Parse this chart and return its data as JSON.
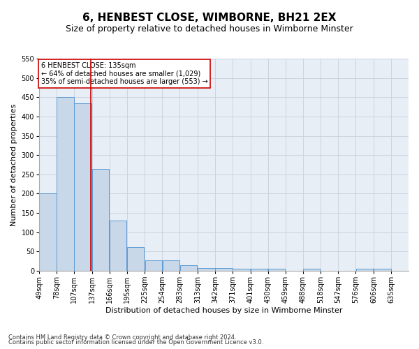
{
  "title": "6, HENBEST CLOSE, WIMBORNE, BH21 2EX",
  "subtitle": "Size of property relative to detached houses in Wimborne Minster",
  "xlabel": "Distribution of detached houses by size in Wimborne Minster",
  "ylabel": "Number of detached properties",
  "footnote1": "Contains HM Land Registry data © Crown copyright and database right 2024.",
  "footnote2": "Contains public sector information licensed under the Open Government Licence v3.0.",
  "annotation_title": "6 HENBEST CLOSE: 135sqm",
  "annotation_line2": "← 64% of detached houses are smaller (1,029)",
  "annotation_line3": "35% of semi-detached houses are larger (553) →",
  "bar_left_edges": [
    49,
    78,
    107,
    137,
    166,
    195,
    225,
    254,
    283,
    313,
    342,
    371,
    401,
    430,
    459,
    488,
    518,
    547,
    576,
    606
  ],
  "bar_widths": [
    29,
    29,
    29,
    29,
    29,
    29,
    29,
    29,
    29,
    29,
    29,
    29,
    29,
    29,
    29,
    29,
    29,
    29,
    29,
    29
  ],
  "bar_heights": [
    200,
    450,
    435,
    265,
    130,
    62,
    28,
    28,
    14,
    8,
    7,
    5,
    5,
    5,
    0,
    5,
    0,
    0,
    5,
    5
  ],
  "tick_labels": [
    "49sqm",
    "78sqm",
    "107sqm",
    "137sqm",
    "166sqm",
    "195sqm",
    "225sqm",
    "254sqm",
    "283sqm",
    "313sqm",
    "342sqm",
    "371sqm",
    "401sqm",
    "430sqm",
    "459sqm",
    "488sqm",
    "518sqm",
    "547sqm",
    "576sqm",
    "606sqm",
    "635sqm"
  ],
  "bar_color": "#c8d8e8",
  "bar_edge_color": "#5b9bd5",
  "vline_x": 135,
  "vline_color": "#cc0000",
  "ylim": [
    0,
    550
  ],
  "yticks": [
    0,
    50,
    100,
    150,
    200,
    250,
    300,
    350,
    400,
    450,
    500,
    550
  ],
  "grid_color": "#c8d0dc",
  "bg_color": "#e8eef6",
  "annotation_box_color": "#ffffff",
  "annotation_box_edge": "#cc0000",
  "title_fontsize": 11,
  "subtitle_fontsize": 9,
  "ylabel_fontsize": 8,
  "xlabel_fontsize": 8,
  "tick_fontsize": 7,
  "annotation_fontsize": 7,
  "footnote_fontsize": 6
}
